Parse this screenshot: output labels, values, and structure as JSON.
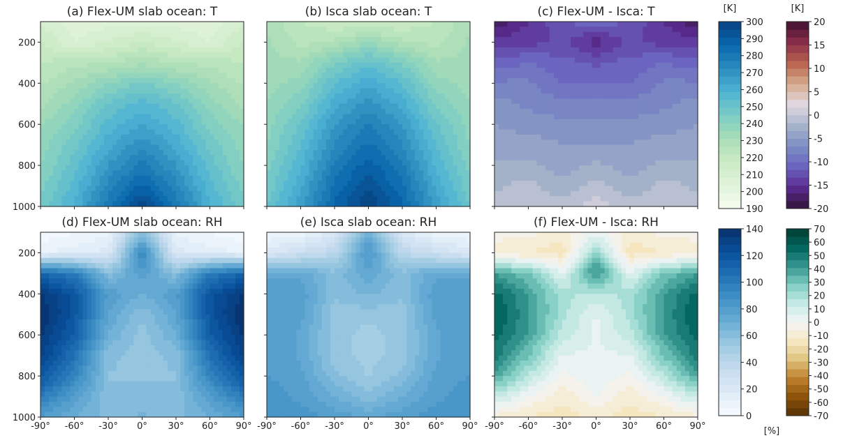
{
  "chart_data": [
    {
      "type": "heatmap",
      "panel": "a",
      "title": "(a) Flex-UM slab ocean: T",
      "variable": "T",
      "units": "[K]",
      "colormap": "GnBu",
      "ylim": [
        1000,
        100
      ],
      "yticks": [
        200,
        400,
        600,
        800,
        1000
      ],
      "xticks": [
        "-90°",
        "-60°",
        "-30°",
        "0°",
        "30°",
        "60°",
        "90°"
      ],
      "xlim": [
        -90,
        90
      ],
      "x": [
        -90,
        -60,
        -30,
        0,
        30,
        60,
        90
      ],
      "y": [
        100,
        200,
        300,
        400,
        500,
        600,
        700,
        800,
        900,
        1000
      ],
      "z": [
        [
          212,
          206,
          206,
          207,
          206,
          206,
          212
        ],
        [
          218,
          208,
          213,
          218,
          213,
          208,
          218
        ],
        [
          222,
          225,
          226,
          230,
          226,
          225,
          222
        ],
        [
          226,
          232,
          240,
          246,
          240,
          232,
          226
        ],
        [
          230,
          238,
          250,
          256,
          250,
          238,
          230
        ],
        [
          235,
          243,
          256,
          263,
          256,
          243,
          235
        ],
        [
          238,
          248,
          262,
          271,
          262,
          248,
          238
        ],
        [
          240,
          252,
          268,
          279,
          268,
          252,
          240
        ],
        [
          243,
          256,
          274,
          288,
          274,
          256,
          243
        ],
        [
          247,
          260,
          280,
          298,
          280,
          260,
          247
        ]
      ]
    },
    {
      "type": "heatmap",
      "panel": "b",
      "title": "(b) Isca slab ocean: T",
      "variable": "T",
      "units": "[K]",
      "colormap": "GnBu",
      "ylim": [
        1000,
        100
      ],
      "yticks": [
        200,
        400,
        600,
        800,
        1000
      ],
      "xticks": [
        "-90°",
        "-60°",
        "-30°",
        "0°",
        "30°",
        "60°",
        "90°"
      ],
      "xlim": [
        -90,
        90
      ],
      "x": [
        -90,
        -60,
        -30,
        0,
        30,
        60,
        90
      ],
      "y": [
        100,
        200,
        300,
        400,
        500,
        600,
        700,
        800,
        900,
        1000
      ],
      "z": [
        [
          230,
          222,
          218,
          216,
          218,
          222,
          230
        ],
        [
          232,
          225,
          228,
          236,
          228,
          225,
          232
        ],
        [
          233,
          232,
          244,
          252,
          244,
          232,
          233
        ],
        [
          234,
          238,
          254,
          262,
          254,
          238,
          234
        ],
        [
          236,
          244,
          261,
          270,
          261,
          244,
          236
        ],
        [
          238,
          250,
          268,
          277,
          268,
          250,
          238
        ],
        [
          240,
          254,
          273,
          283,
          273,
          254,
          240
        ],
        [
          243,
          258,
          278,
          289,
          278,
          258,
          243
        ],
        [
          246,
          262,
          283,
          295,
          283,
          262,
          246
        ],
        [
          250,
          266,
          287,
          300,
          287,
          266,
          250
        ]
      ]
    },
    {
      "type": "heatmap",
      "panel": "c",
      "title": "(c) Flex-UM - Isca: T",
      "variable": "T difference",
      "units": "[K]",
      "colormap": "twilight_shifted",
      "ylim": [
        1000,
        100
      ],
      "yticks": [
        200,
        400,
        600,
        800,
        1000
      ],
      "xticks": [
        "-90°",
        "-60°",
        "-30°",
        "0°",
        "30°",
        "60°",
        "90°"
      ],
      "xlim": [
        -90,
        90
      ],
      "x": [
        -90,
        -60,
        -30,
        0,
        30,
        60,
        90
      ],
      "y": [
        100,
        200,
        300,
        400,
        500,
        600,
        700,
        800,
        900,
        1000
      ],
      "z": [
        [
          -18,
          -15,
          -12,
          -10,
          -12,
          -15,
          -18
        ],
        [
          -14,
          -14,
          -13,
          -16,
          -13,
          -14,
          -14
        ],
        [
          -11,
          -10,
          -11,
          -12,
          -11,
          -10,
          -11
        ],
        [
          -8,
          -8,
          -10,
          -10,
          -10,
          -8,
          -8
        ],
        [
          -6,
          -7,
          -8,
          -8,
          -8,
          -7,
          -6
        ],
        [
          -5,
          -6,
          -6,
          -6,
          -6,
          -6,
          -5
        ],
        [
          -4,
          -4,
          -5,
          -5,
          -5,
          -4,
          -4
        ],
        [
          -3,
          -3,
          -4,
          -3,
          -4,
          -3,
          -3
        ],
        [
          -2,
          -1,
          -3,
          -1,
          -3,
          -1,
          -2
        ],
        [
          -1,
          0,
          -1,
          1,
          -1,
          0,
          -1
        ]
      ]
    },
    {
      "type": "heatmap",
      "panel": "d",
      "title": "(d) Flex-UM slab ocean: RH",
      "variable": "RH",
      "units": "[%]",
      "colormap": "Blues",
      "ylim": [
        1000,
        100
      ],
      "yticks": [
        200,
        400,
        600,
        800,
        1000
      ],
      "xticks": [
        "-90°",
        "-60°",
        "-30°",
        "0°",
        "30°",
        "60°",
        "90°"
      ],
      "xlim": [
        -90,
        90
      ],
      "x": [
        -90,
        -60,
        -30,
        0,
        30,
        60,
        90
      ],
      "y": [
        100,
        200,
        300,
        400,
        500,
        600,
        700,
        800,
        900,
        1000
      ],
      "z": [
        [
          2,
          5,
          10,
          60,
          10,
          5,
          2
        ],
        [
          10,
          15,
          20,
          95,
          20,
          15,
          10
        ],
        [
          110,
          100,
          60,
          80,
          60,
          100,
          110
        ],
        [
          135,
          120,
          80,
          70,
          80,
          120,
          135
        ],
        [
          140,
          120,
          75,
          60,
          75,
          120,
          140
        ],
        [
          135,
          115,
          70,
          55,
          70,
          115,
          135
        ],
        [
          130,
          105,
          60,
          55,
          60,
          105,
          130
        ],
        [
          120,
          95,
          58,
          58,
          58,
          95,
          120
        ],
        [
          100,
          80,
          60,
          60,
          60,
          80,
          100
        ],
        [
          80,
          70,
          62,
          65,
          62,
          70,
          80
        ]
      ]
    },
    {
      "type": "heatmap",
      "panel": "e",
      "title": "(e) Isca slab ocean: RH",
      "variable": "RH",
      "units": "[%]",
      "colormap": "Blues",
      "ylim": [
        1000,
        100
      ],
      "yticks": [
        200,
        400,
        600,
        800,
        1000
      ],
      "xticks": [
        "-90°",
        "-60°",
        "-30°",
        "0°",
        "30°",
        "60°",
        "90°"
      ],
      "xlim": [
        -90,
        90
      ],
      "x": [
        -90,
        -60,
        -30,
        0,
        30,
        60,
        90
      ],
      "y": [
        100,
        200,
        300,
        400,
        500,
        600,
        700,
        800,
        900,
        1000
      ],
      "z": [
        [
          5,
          8,
          20,
          70,
          20,
          8,
          5
        ],
        [
          20,
          30,
          40,
          85,
          40,
          30,
          20
        ],
        [
          75,
          75,
          60,
          75,
          60,
          75,
          75
        ],
        [
          80,
          80,
          60,
          65,
          60,
          80,
          80
        ],
        [
          80,
          78,
          55,
          55,
          55,
          78,
          80
        ],
        [
          80,
          75,
          55,
          50,
          55,
          75,
          80
        ],
        [
          80,
          75,
          55,
          50,
          55,
          75,
          80
        ],
        [
          82,
          78,
          60,
          52,
          60,
          78,
          82
        ],
        [
          85,
          80,
          70,
          60,
          70,
          80,
          85
        ],
        [
          88,
          85,
          80,
          75,
          80,
          85,
          88
        ]
      ]
    },
    {
      "type": "heatmap",
      "panel": "f",
      "title": "(f) Flex-UM - Isca: RH",
      "variable": "RH difference",
      "units": "[%]",
      "colormap": "BrBG",
      "ylim": [
        1000,
        100
      ],
      "yticks": [
        200,
        400,
        600,
        800,
        1000
      ],
      "xticks": [
        "-90°",
        "-60°",
        "-30°",
        "0°",
        "30°",
        "60°",
        "90°"
      ],
      "xlim": [
        -90,
        90
      ],
      "x": [
        -90,
        -60,
        -30,
        0,
        30,
        60,
        90
      ],
      "y": [
        100,
        200,
        300,
        400,
        500,
        600,
        700,
        800,
        900,
        1000
      ],
      "z": [
        [
          -3,
          -3,
          -10,
          2,
          -10,
          -3,
          -3
        ],
        [
          -10,
          -12,
          -15,
          25,
          -15,
          -12,
          -10
        ],
        [
          40,
          30,
          5,
          45,
          5,
          30,
          40
        ],
        [
          55,
          40,
          20,
          15,
          20,
          40,
          55
        ],
        [
          60,
          42,
          20,
          5,
          20,
          42,
          60
        ],
        [
          55,
          40,
          15,
          5,
          15,
          40,
          55
        ],
        [
          50,
          30,
          5,
          5,
          5,
          30,
          50
        ],
        [
          38,
          17,
          -2,
          6,
          -2,
          17,
          38
        ],
        [
          15,
          0,
          -10,
          0,
          -10,
          0,
          15
        ],
        [
          -8,
          -12,
          -15,
          -10,
          -15,
          -12,
          -8
        ]
      ]
    }
  ],
  "colorbars": {
    "t_abs": {
      "units": "[K]",
      "min": 190,
      "max": 300,
      "ticks": [
        "300",
        "290",
        "280",
        "270",
        "260",
        "250",
        "240",
        "230",
        "220",
        "210",
        "200",
        "190"
      ],
      "colormap": "GnBu"
    },
    "t_diff": {
      "units": "[K]",
      "min": -20,
      "max": 20,
      "ticks": [
        "20",
        "15",
        "10",
        "5",
        "0",
        "-5",
        "-10",
        "-15",
        "-20"
      ],
      "colormap": "twilight_shifted"
    },
    "rh_abs": {
      "units": "[%]",
      "min": 0,
      "max": 140,
      "ticks": [
        "140",
        "120",
        "100",
        "80",
        "60",
        "40",
        "20",
        "0"
      ],
      "colormap": "Blues"
    },
    "rh_diff": {
      "units": "",
      "min": -70,
      "max": 70,
      "ticks": [
        "70",
        "60",
        "50",
        "40",
        "30",
        "20",
        "10",
        "0",
        "-10",
        "-20",
        "-30",
        "-40",
        "-50",
        "-60",
        "-70"
      ],
      "colormap": "BrBG"
    }
  }
}
